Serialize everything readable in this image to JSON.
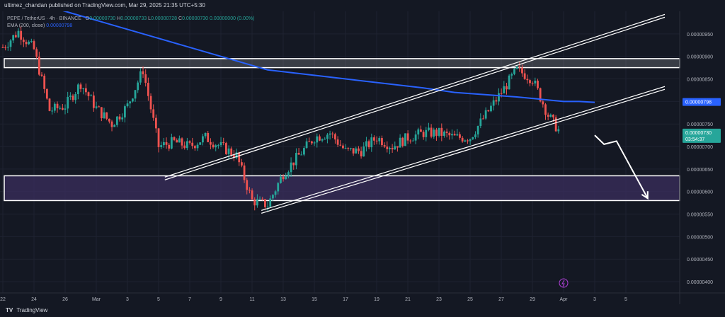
{
  "header": {
    "text": "ultimez_chandan published on TradingView.com, Mar 29, 2025 21:35 UTC+5:30"
  },
  "legend": {
    "pair": "PEPE / TetherUS · 4h · BINANCE",
    "ohlc": [
      {
        "label": "O",
        "value": "0.00000730"
      },
      {
        "label": "H",
        "value": "0.00000733"
      },
      {
        "label": "L",
        "value": "0.00000728"
      },
      {
        "label": "C",
        "value": "0.00000730"
      }
    ],
    "change": "0.00000000 (0.00%)",
    "ema_label": "EMA (200, close)",
    "ema_value": "0.00000798"
  },
  "footer": {
    "logo": "TV",
    "brand": "TradingView"
  },
  "colors": {
    "up": "#26a69a",
    "down": "#ef5350",
    "ema": "#2962ff",
    "zone": "#3a2e5e",
    "grid": "#1e2230",
    "arrow": "#ffffff"
  },
  "chart_data": {
    "type": "candlestick",
    "title": "",
    "ylim": [
      3.75e-06,
      1e-05
    ],
    "y_ticks": [
      "0.00000950",
      "0.00000900",
      "0.00000850",
      "0.00000800",
      "0.00000750",
      "0.00000700",
      "0.00000650",
      "0.00000600",
      "0.00000550",
      "0.00000500",
      "0.00000450",
      "0.00000400"
    ],
    "x_ticks": [
      "22",
      "24",
      "26",
      "Mar",
      "3",
      "5",
      "7",
      "9",
      "11",
      "13",
      "15",
      "17",
      "19",
      "21",
      "23",
      "25",
      "27",
      "29",
      "Apr",
      "3",
      "5"
    ],
    "price_labels": [
      {
        "text": "0.00000798",
        "price": 7.98e-06,
        "color": "#2962ff"
      },
      {
        "text": "0.00000730",
        "price": 7.3e-06,
        "color": "#26a69a",
        "sub": "03:54:37"
      }
    ],
    "ema_200": [
      [
        0,
        1.04e-05
      ],
      [
        5,
        9.9e-06
      ],
      [
        10,
        9.4e-06
      ],
      [
        13,
        9.1e-06
      ],
      [
        17,
        8.7e-06
      ],
      [
        22,
        8.5e-06
      ],
      [
        27,
        8.3e-06
      ],
      [
        29,
        8.2e-06
      ],
      [
        33,
        8.1e-06
      ],
      [
        36,
        8e-06
      ],
      [
        37,
        8e-06
      ],
      [
        38,
        7.98e-06
      ]
    ],
    "resistance_zone": [
      8.95e-06,
      8.75e-06
    ],
    "support_zone": [
      6.35e-06,
      5.8e-06
    ],
    "channel_upper": [
      [
        10.4,
        6.29e-06
      ],
      [
        42.5,
        9.9e-06
      ]
    ],
    "channel_lower": [
      [
        16.6,
        5.55e-06
      ],
      [
        42.5,
        8.3e-06
      ]
    ],
    "projection": [
      [
        38.0,
        7.25e-06
      ],
      [
        38.6,
        7.05e-06
      ],
      [
        39.4,
        7.12e-06
      ],
      [
        41.4,
        5.85e-06
      ]
    ],
    "candles_summary": "PEPE 4h candles from Feb 21 to Mar 29 2025 ranging 0.0000057 to 0.0000095"
  }
}
